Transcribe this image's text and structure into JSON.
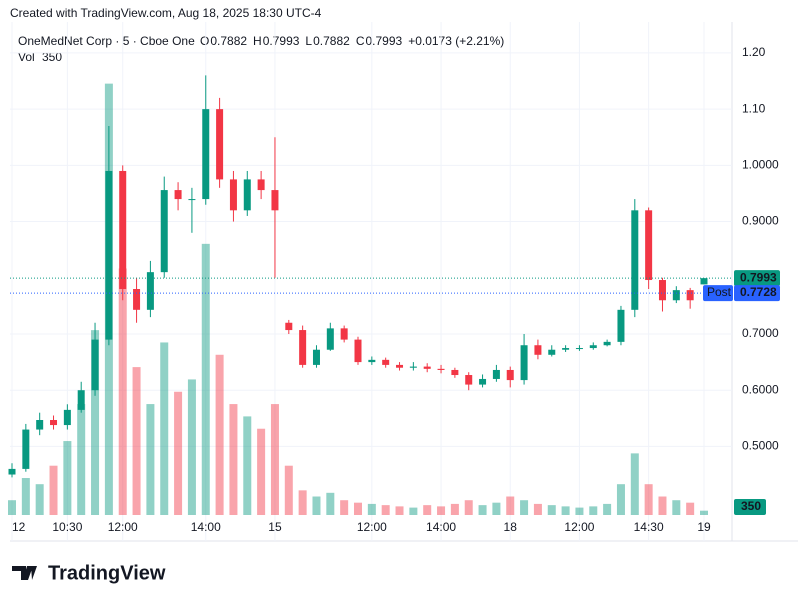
{
  "chart_data": {
    "type": "candlestick",
    "header": "Created with TradingView.com, Aug 18, 2025 18:30 UTC-4",
    "title": "OneMedNet Corp · 5 · Cboe One",
    "legend": [
      {
        "label": "O",
        "value": 0.7882
      },
      {
        "label": "H",
        "value": 0.7993
      },
      {
        "label": "L",
        "value": 0.7882
      },
      {
        "label": "C",
        "value": 0.7993
      }
    ],
    "change": "+0.0173 (+2.21%)",
    "volume_label": "Vol",
    "brand": "TradingView",
    "up_color": "#089981",
    "down_color": "#f23645",
    "post_color": "#2962ff",
    "grid": true,
    "categories": [
      "12",
      null,
      null,
      null,
      "10:30",
      null,
      null,
      null,
      "12:00",
      null,
      null,
      null,
      null,
      null,
      "14:00",
      null,
      null,
      null,
      null,
      "15",
      null,
      null,
      null,
      null,
      null,
      null,
      "12:00",
      null,
      null,
      null,
      null,
      "14:00",
      null,
      null,
      null,
      null,
      "18",
      null,
      null,
      null,
      null,
      "12:00",
      null,
      null,
      null,
      null,
      "14:30",
      null,
      null,
      null,
      "19"
    ],
    "open": [
      0.45,
      0.46,
      0.53,
      0.547,
      0.538,
      0.565,
      0.6,
      0.69,
      0.99,
      0.78,
      0.743,
      0.81,
      0.956,
      0.94,
      0.94,
      1.1,
      0.975,
      0.92,
      0.975,
      0.956,
      0.72,
      0.707,
      0.645,
      0.672,
      0.71,
      0.69,
      0.65,
      0.654,
      0.645,
      0.64,
      0.642,
      0.638,
      0.636,
      0.627,
      0.61,
      0.62,
      0.636,
      0.618,
      0.68,
      0.663,
      0.672,
      0.675,
      0.675,
      0.68,
      0.686,
      0.743,
      0.92,
      0.796,
      0.76,
      0.778,
      0.7882
    ],
    "high": [
      0.47,
      0.54,
      0.56,
      0.555,
      0.575,
      0.615,
      0.72,
      1.07,
      1.0,
      0.8,
      0.83,
      0.98,
      0.97,
      0.96,
      1.16,
      1.12,
      0.99,
      0.99,
      0.99,
      1.05,
      0.725,
      0.715,
      0.68,
      0.72,
      0.715,
      0.695,
      0.66,
      0.658,
      0.65,
      0.65,
      0.648,
      0.645,
      0.64,
      0.632,
      0.628,
      0.645,
      0.642,
      0.7,
      0.69,
      0.68,
      0.68,
      0.68,
      0.685,
      0.69,
      0.75,
      0.94,
      0.925,
      0.8,
      0.785,
      0.782,
      0.7993
    ],
    "low": [
      0.445,
      0.455,
      0.52,
      0.53,
      0.53,
      0.56,
      0.59,
      0.68,
      0.76,
      0.72,
      0.73,
      0.8,
      0.92,
      0.88,
      0.93,
      0.96,
      0.9,
      0.91,
      0.94,
      0.8,
      0.7,
      0.64,
      0.64,
      0.67,
      0.685,
      0.645,
      0.645,
      0.64,
      0.635,
      0.635,
      0.632,
      0.63,
      0.622,
      0.6,
      0.605,
      0.615,
      0.605,
      0.61,
      0.655,
      0.66,
      0.668,
      0.67,
      0.672,
      0.678,
      0.68,
      0.73,
      0.78,
      0.74,
      0.755,
      0.745,
      0.7882
    ],
    "close": [
      0.46,
      0.53,
      0.547,
      0.538,
      0.565,
      0.6,
      0.69,
      0.99,
      0.78,
      0.743,
      0.81,
      0.956,
      0.94,
      0.94,
      1.1,
      0.975,
      0.92,
      0.975,
      0.956,
      0.92,
      0.707,
      0.645,
      0.672,
      0.71,
      0.69,
      0.65,
      0.654,
      0.645,
      0.64,
      0.642,
      0.638,
      0.636,
      0.627,
      0.61,
      0.62,
      0.636,
      0.618,
      0.68,
      0.663,
      0.672,
      0.675,
      0.675,
      0.68,
      0.686,
      0.743,
      0.92,
      0.796,
      0.76,
      0.778,
      0.76,
      0.7993
    ],
    "volume": [
      1200,
      3000,
      2500,
      4000,
      6000,
      9000,
      15000,
      35000,
      20000,
      12000,
      9000,
      14000,
      10000,
      11000,
      22000,
      13000,
      9000,
      8000,
      7000,
      9000,
      4000,
      2000,
      1500,
      1800,
      1200,
      1000,
      900,
      800,
      700,
      600,
      800,
      700,
      900,
      1200,
      800,
      1000,
      1500,
      1200,
      900,
      800,
      700,
      600,
      700,
      900,
      2500,
      5000,
      2500,
      1500,
      1200,
      1000,
      350
    ],
    "volume_ylim": [
      0,
      40000
    ],
    "ylim": [
      0.378,
      1.255
    ],
    "yticks": [
      {
        "value": 1.2,
        "label": "1.20"
      },
      {
        "value": 1.1,
        "label": "1.10"
      },
      {
        "value": 1,
        "label": "1.0000"
      },
      {
        "value": 0.9,
        "label": "0.9000"
      },
      {
        "value": 0.7,
        "label": "0.7000"
      },
      {
        "value": 0.6,
        "label": "0.6000"
      },
      {
        "value": 0.5,
        "label": "0.5000"
      }
    ],
    "last_price": 0.7993,
    "post": {
      "label": "Post",
      "value": 0.7728
    }
  }
}
